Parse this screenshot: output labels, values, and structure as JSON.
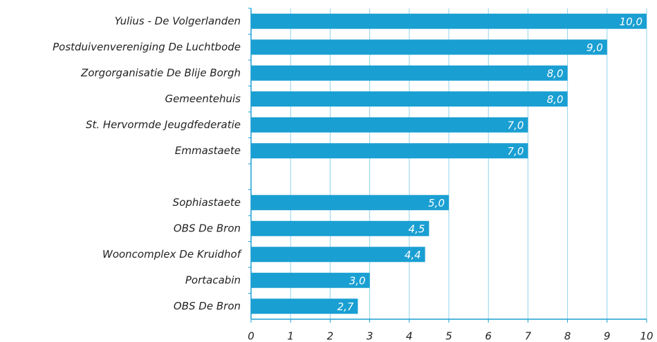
{
  "chart_data": {
    "type": "bar",
    "orientation": "horizontal",
    "categories": [
      "Yulius - De Volgerlanden",
      "Postduivenvereniging De Luchtbode",
      "Zorgorganisatie De Blije Borgh",
      "Gemeentehuis",
      "St. Hervormde Jeugdfederatie",
      "Emmastaete",
      null,
      "Sophiastaete",
      "OBS De Bron",
      "Wooncomplex De Kruidhof",
      "Portacabin",
      "OBS De Bron"
    ],
    "values": [
      10,
      9,
      8,
      8,
      7,
      7,
      null,
      5,
      4.5,
      4.4,
      3,
      2.7
    ],
    "value_labels": [
      "10,0",
      "9,0",
      "8,0",
      "8,0",
      "7,0",
      "7,0",
      null,
      "5,0",
      "4,5",
      "4,4",
      "3,0",
      "2,7"
    ],
    "color": "#1a9fd2",
    "xlim": [
      0,
      10
    ],
    "xticks": [
      0,
      1,
      2,
      3,
      4,
      5,
      6,
      7,
      8,
      9,
      10
    ],
    "grid": true
  }
}
